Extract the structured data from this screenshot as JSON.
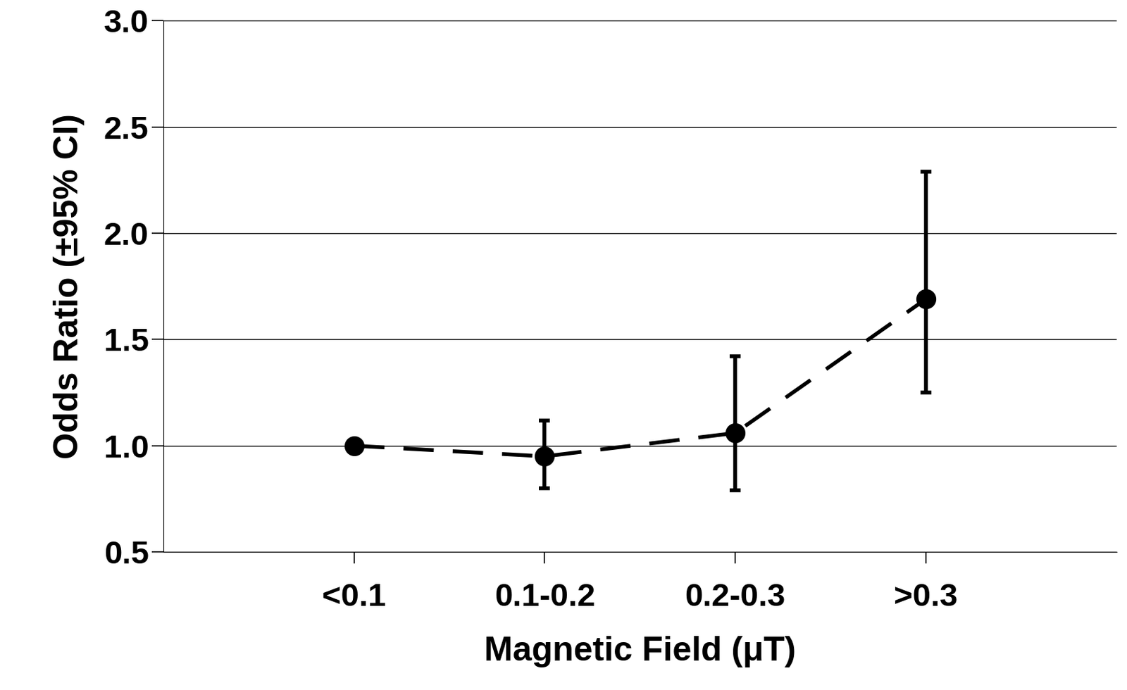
{
  "chart_data": {
    "type": "line",
    "xlabel": "Magnetic Field (μT)",
    "ylabel": "Odds Ratio (±95% CI)",
    "categories": [
      "<0.1",
      "0.1-0.2",
      "0.2-0.3",
      ">0.3"
    ],
    "values": [
      1.0,
      0.95,
      1.06,
      1.69
    ],
    "ci_low": [
      null,
      0.8,
      0.79,
      1.25
    ],
    "ci_high": [
      null,
      1.12,
      1.42,
      2.29
    ],
    "color": "#000000",
    "marker": "circle",
    "line_style": "dashed",
    "ylim": [
      0.5,
      3.0
    ],
    "yticks": [
      {
        "value": 0.5,
        "label": "0.5"
      },
      {
        "value": 1.0,
        "label": "1.0"
      },
      {
        "value": 1.5,
        "label": "1.5"
      },
      {
        "value": 2.0,
        "label": "2.0"
      },
      {
        "value": 2.5,
        "label": "2.5"
      },
      {
        "value": 3.0,
        "label": "3.0"
      }
    ],
    "grid": true
  }
}
